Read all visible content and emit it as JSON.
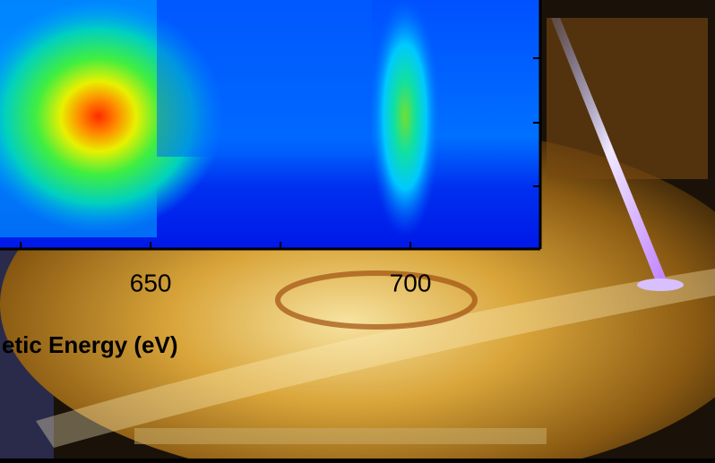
{
  "chart_data": {
    "type": "contour",
    "xlabel": "etic Energy (eV)",
    "xlim": [
      621,
      725
    ],
    "xticks": [
      650,
      700
    ],
    "xminorticks": [
      625,
      675
    ]
  }
}
